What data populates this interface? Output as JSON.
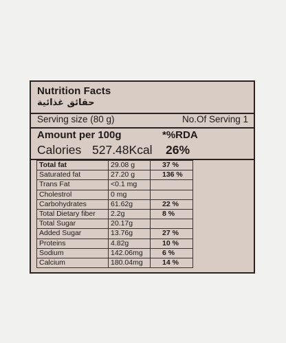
{
  "label": {
    "title": "Nutrition Facts",
    "arabic_title": "حقائق غذائية",
    "serving_size": "Serving size (80 g)",
    "servings": "No.Of Serving 1",
    "amount_header": "Amount per 100g",
    "rda_header": "*%RDA",
    "calories_label": "Calories",
    "calories_value": "527.48Kcal",
    "calories_pct": "26%",
    "rows": [
      {
        "name": "Total fat",
        "qty": "29.08 g",
        "pct": "37 %"
      },
      {
        "name": "Saturated fat",
        "qty": "27.20 g",
        "pct": "136 %"
      },
      {
        "name": "Trans Fat",
        "qty": "<0.1 mg",
        "pct": ""
      },
      {
        "name": "Cholestrol",
        "qty": "0 mg",
        "pct": ""
      },
      {
        "name": "Carbohydrates",
        "qty": "61.62g",
        "pct": "22 %"
      },
      {
        "name": "Total Dietary fiber",
        "qty": "2.2g",
        "pct": "8 %"
      },
      {
        "name": "Total Sugar",
        "qty": "20.17g",
        "pct": ""
      },
      {
        "name": "Added Sugar",
        "qty": "13.76g",
        "pct": "27 %"
      },
      {
        "name": "Proteins",
        "qty": "4.82g",
        "pct": "10 %"
      },
      {
        "name": "Sodium",
        "qty": "142.06mg",
        "pct": "6 %"
      },
      {
        "name": "Calcium",
        "qty": "180.04mg",
        "pct": "14 %"
      }
    ]
  },
  "colors": {
    "label_background": "#d9ccc4",
    "page_background": "#f1f1ef",
    "ink": "#1f1a18"
  }
}
